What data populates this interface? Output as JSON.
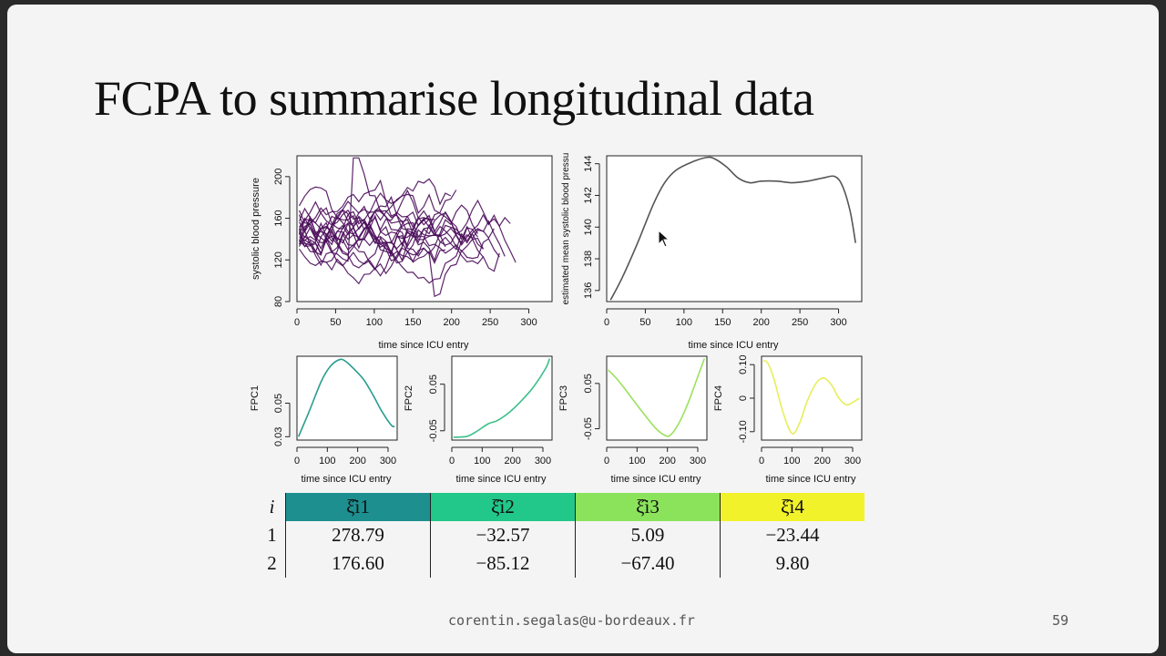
{
  "slide": {
    "title": "FCPA to summarise longitudinal data",
    "footer_email": "corentin.segalas@u-bordeaux.fr",
    "page_number": "59"
  },
  "chart_data": [
    {
      "id": "sbp",
      "type": "line",
      "ylabel": "systolic blood pressure",
      "xlabel": "time since ICU entry",
      "xlim": [
        0,
        330
      ],
      "ylim": [
        80,
        220
      ],
      "xticks": [
        0,
        50,
        100,
        150,
        200,
        250,
        300
      ],
      "yticks": [
        80,
        120,
        160,
        200
      ],
      "n_series": 20,
      "color": "#4a0c5a"
    },
    {
      "id": "mean",
      "type": "line",
      "ylabel": "estimated mean systolic blood pressu",
      "xlabel": "time since ICU entry",
      "xlim": [
        0,
        330
      ],
      "ylim": [
        135.3,
        144.5
      ],
      "xticks": [
        0,
        50,
        100,
        150,
        200,
        250,
        300
      ],
      "yticks": [
        136,
        138,
        140,
        142,
        144
      ],
      "color": "#555555",
      "x": [
        5,
        20,
        40,
        60,
        75,
        90,
        110,
        130,
        140,
        155,
        170,
        185,
        200,
        220,
        240,
        260,
        280,
        295,
        305,
        315,
        322
      ],
      "y": [
        135.4,
        136.8,
        139.0,
        141.4,
        142.8,
        143.6,
        144.1,
        144.4,
        144.3,
        143.8,
        143.1,
        142.8,
        142.9,
        142.9,
        142.8,
        142.9,
        143.1,
        143.2,
        142.6,
        141.0,
        139.0
      ]
    },
    {
      "id": "fpc1",
      "type": "line",
      "ylabel": "FPC1",
      "xlabel": "time since ICU entry",
      "xlim": [
        0,
        330
      ],
      "ylim": [
        0.028,
        0.078
      ],
      "xticks": [
        0,
        100,
        200,
        300
      ],
      "yticks": [
        0.03,
        0.05
      ],
      "color": "#2a9d8f",
      "x": [
        5,
        40,
        80,
        110,
        140,
        160,
        190,
        220,
        250,
        280,
        310,
        322
      ],
      "y": [
        0.03,
        0.045,
        0.063,
        0.072,
        0.076,
        0.075,
        0.07,
        0.064,
        0.055,
        0.045,
        0.037,
        0.036
      ]
    },
    {
      "id": "fpc2",
      "type": "line",
      "ylabel": "FPC2",
      "xlabel": "time since ICU entry",
      "xlim": [
        0,
        330
      ],
      "ylim": [
        -0.07,
        0.11
      ],
      "xticks": [
        0,
        100,
        200,
        300
      ],
      "yticks": [
        -0.05,
        0.05
      ],
      "color": "#3cbf8a",
      "x": [
        5,
        50,
        80,
        120,
        150,
        190,
        230,
        270,
        310,
        322
      ],
      "y": [
        -0.064,
        -0.062,
        -0.052,
        -0.035,
        -0.028,
        -0.01,
        0.015,
        0.045,
        0.085,
        0.105
      ]
    },
    {
      "id": "fpc3",
      "type": "line",
      "ylabel": "FPC3",
      "xlabel": "time since ICU entry",
      "xlim": [
        0,
        330
      ],
      "ylim": [
        -0.075,
        0.11
      ],
      "xticks": [
        0,
        100,
        200,
        300
      ],
      "yticks": [
        -0.05,
        0.05
      ],
      "color": "#9be15d",
      "x": [
        5,
        40,
        80,
        120,
        160,
        190,
        210,
        240,
        270,
        300,
        322
      ],
      "y": [
        0.08,
        0.055,
        0.02,
        -0.015,
        -0.048,
        -0.064,
        -0.064,
        -0.035,
        0.01,
        0.065,
        0.105
      ]
    },
    {
      "id": "fpc4",
      "type": "line",
      "ylabel": "FPC4",
      "xlabel": "time since ICU entry",
      "xlim": [
        0,
        330
      ],
      "ylim": [
        -0.125,
        0.125
      ],
      "xticks": [
        0,
        100,
        200,
        300
      ],
      "yticks": [
        -0.1,
        0.0,
        0.1
      ],
      "color": "#e8ee5a",
      "x": [
        5,
        20,
        40,
        70,
        100,
        125,
        150,
        180,
        205,
        230,
        255,
        280,
        305,
        322
      ],
      "y": [
        0.112,
        0.105,
        0.06,
        -0.04,
        -0.105,
        -0.075,
        -0.01,
        0.045,
        0.06,
        0.04,
        0.0,
        -0.02,
        -0.01,
        0.0
      ]
    }
  ],
  "table": {
    "index_header": "i",
    "columns": [
      {
        "label": "ξ̂i1",
        "color": "#1e8f8f"
      },
      {
        "label": "ξ̂i2",
        "color": "#22c78a"
      },
      {
        "label": "ξ̂i3",
        "color": "#8be35c"
      },
      {
        "label": "ξ̂i4",
        "color": "#f2f22a"
      }
    ],
    "rows": [
      {
        "i": "1",
        "values": [
          "278.79",
          "−32.57",
          "5.09",
          "−23.44"
        ]
      },
      {
        "i": "2",
        "values": [
          "176.60",
          "−85.12",
          "−67.40",
          "9.80"
        ]
      }
    ]
  }
}
